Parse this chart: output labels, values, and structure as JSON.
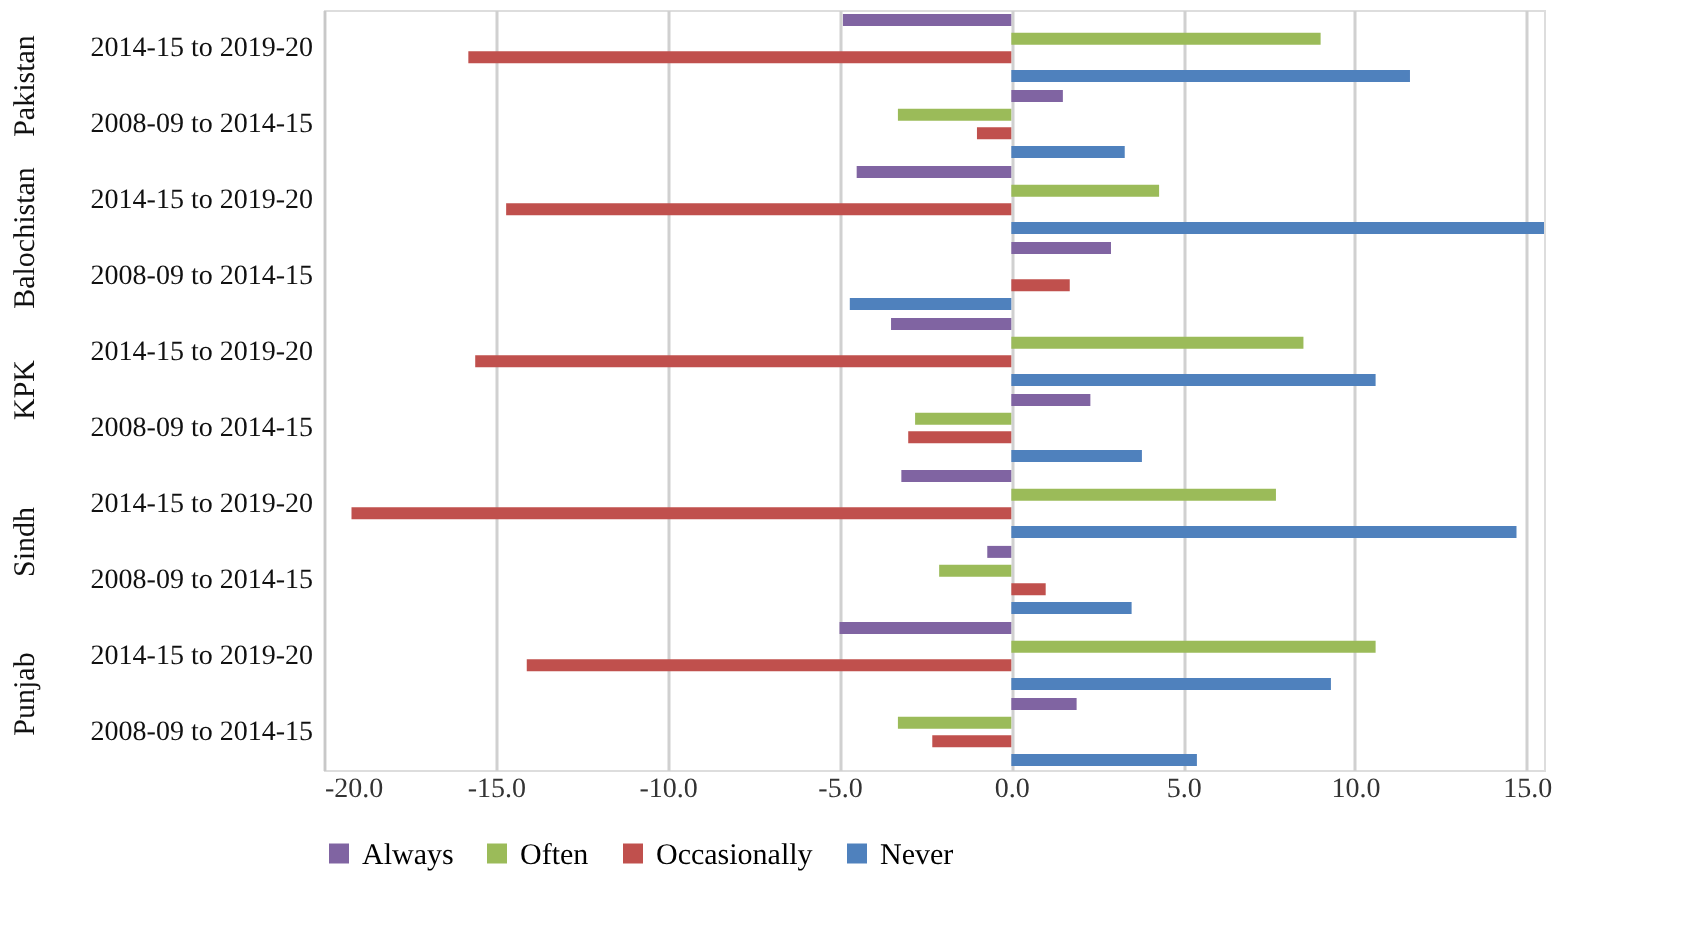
{
  "chart_data": {
    "type": "bar",
    "orientation": "horizontal",
    "categories": [
      "2014-15 to 2019-20",
      "2008-09 to 2014-15",
      "2014-15 to 2019-20",
      "2008-09 to 2014-15",
      "2014-15 to 2019-20",
      "2008-09 to 2014-15",
      "2014-15 to 2019-20",
      "2008-09 to 2014-15",
      "2014-15 to 2019-20",
      "2008-09 to 2014-15"
    ],
    "annotations": [
      "Pakistan",
      "Balochistan",
      "KPK",
      "Sindh",
      "Punjab"
    ],
    "series": [
      {
        "name": "Always",
        "color": "#8064a2",
        "values": [
          -4.9,
          1.5,
          -4.5,
          2.9,
          -3.5,
          2.3,
          -3.2,
          -0.7,
          -5.0,
          1.9
        ]
      },
      {
        "name": "Often",
        "color": "#9bbb59",
        "values": [
          9.0,
          -3.3,
          4.3,
          0,
          8.5,
          -2.8,
          7.7,
          -2.1,
          10.6,
          -3.3
        ]
      },
      {
        "name": "Occasionally",
        "color": "#c0504d",
        "values": [
          -15.8,
          -1.0,
          -14.7,
          1.7,
          -15.6,
          -3.0,
          -19.2,
          1.0,
          -14.1,
          -2.3
        ]
      },
      {
        "name": "Never",
        "color": "#4f81bd",
        "values": [
          11.6,
          3.3,
          15.5,
          -4.7,
          10.6,
          3.8,
          14.7,
          3.5,
          9.3,
          5.4
        ]
      }
    ],
    "xlim": [
      -20,
      15.5
    ],
    "xticks": [
      {
        "value": -20,
        "label": "-20.0"
      },
      {
        "value": -15,
        "label": "-15.0"
      },
      {
        "value": -10,
        "label": "-10.0"
      },
      {
        "value": -5,
        "label": "-5.0"
      },
      {
        "value": 0,
        "label": "0.0"
      },
      {
        "value": 5,
        "label": "5.0"
      },
      {
        "value": 10,
        "label": "10.0"
      },
      {
        "value": 15,
        "label": "15.0"
      }
    ],
    "grid": "x",
    "legend": "bottom"
  }
}
